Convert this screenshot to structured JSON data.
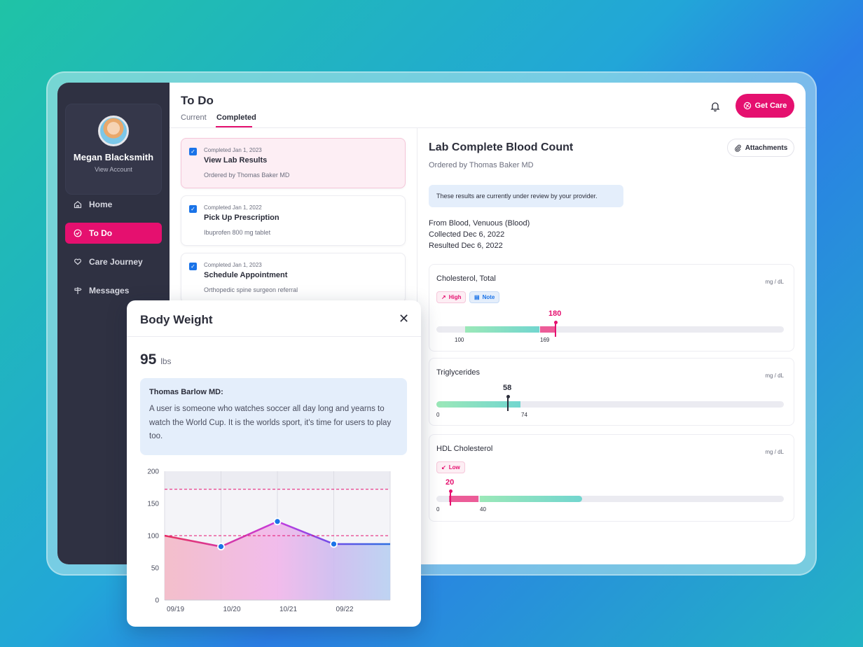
{
  "sidebar": {
    "profile": {
      "name": "Megan Blacksmith",
      "link": "View Account"
    },
    "items": [
      {
        "label": "Home",
        "icon": "home-icon",
        "active": false
      },
      {
        "label": "To Do",
        "icon": "check-circle-icon",
        "active": true
      },
      {
        "label": "Care Journey",
        "icon": "heart-hands-icon",
        "active": false
      },
      {
        "label": "Messages",
        "icon": "signpost-icon",
        "active": false
      }
    ]
  },
  "header": {
    "title": "To Do",
    "tabs": [
      {
        "label": "Current"
      },
      {
        "label": "Completed",
        "active": true
      }
    ],
    "get_care_label": "Get Care"
  },
  "todos": [
    {
      "meta": "Completed Jan 1, 2023",
      "title": "View Lab Results",
      "sub": "Ordered by Thomas Baker MD",
      "selected": true
    },
    {
      "meta": "Completed Jan 1, 2022",
      "title": "Pick Up Prescription",
      "sub": "Ibuprofen 800 mg tablet"
    },
    {
      "meta": "Completed Jan 1, 2023",
      "title": "Schedule Appointment",
      "sub": "Orthopedic spine surgeon referral"
    }
  ],
  "detail": {
    "title": "Lab Complete Blood Count",
    "ordered_by": "Ordered by Thomas Baker MD",
    "attachments_label": "Attachments",
    "review_notice": "These results are currently under review by your provider.",
    "source": "From Blood, Venuous (Blood)",
    "collected": "Collected Dec 6, 2022",
    "resulted": "Resulted Dec 6, 2022",
    "results": [
      {
        "name": "Cholesterol, Total",
        "unit": "mg / dL",
        "badges": [
          "High",
          "Note"
        ],
        "value": "180",
        "range_low": "100",
        "range_high": "169"
      },
      {
        "name": "Triglycerides",
        "unit": "mg / dL",
        "badges": [],
        "value": "58",
        "range_low": "0",
        "range_high": "74"
      },
      {
        "name": "HDL Cholesterol",
        "unit": "mg / dL",
        "badges": [
          "Low"
        ],
        "value": "20",
        "range_low": "0",
        "range_high": "40"
      }
    ]
  },
  "modal": {
    "title": "Body Weight",
    "close_label": "✕",
    "weight_value": "95",
    "weight_unit": "lbs",
    "note_author": "Thomas Barlow MD:",
    "note_text": "A user is someone who watches soccer all day long and yearns to watch the World Cup. It is the worlds sport, it's time for users to play too."
  },
  "colors": {
    "accent": "#e5106f",
    "sidebar": "#2f3142",
    "link_blue": "#1a73e8",
    "normal_range": "#7ddac9"
  },
  "chart_data": {
    "type": "line",
    "categories": [
      "09/19",
      "10/20",
      "10/21",
      "09/22"
    ],
    "values": [
      100,
      83,
      122,
      87
    ],
    "ylim": [
      0,
      200
    ],
    "yticks": [
      0,
      50,
      100,
      150,
      200
    ],
    "reference_lines": [
      100,
      172
    ],
    "grid": true
  }
}
